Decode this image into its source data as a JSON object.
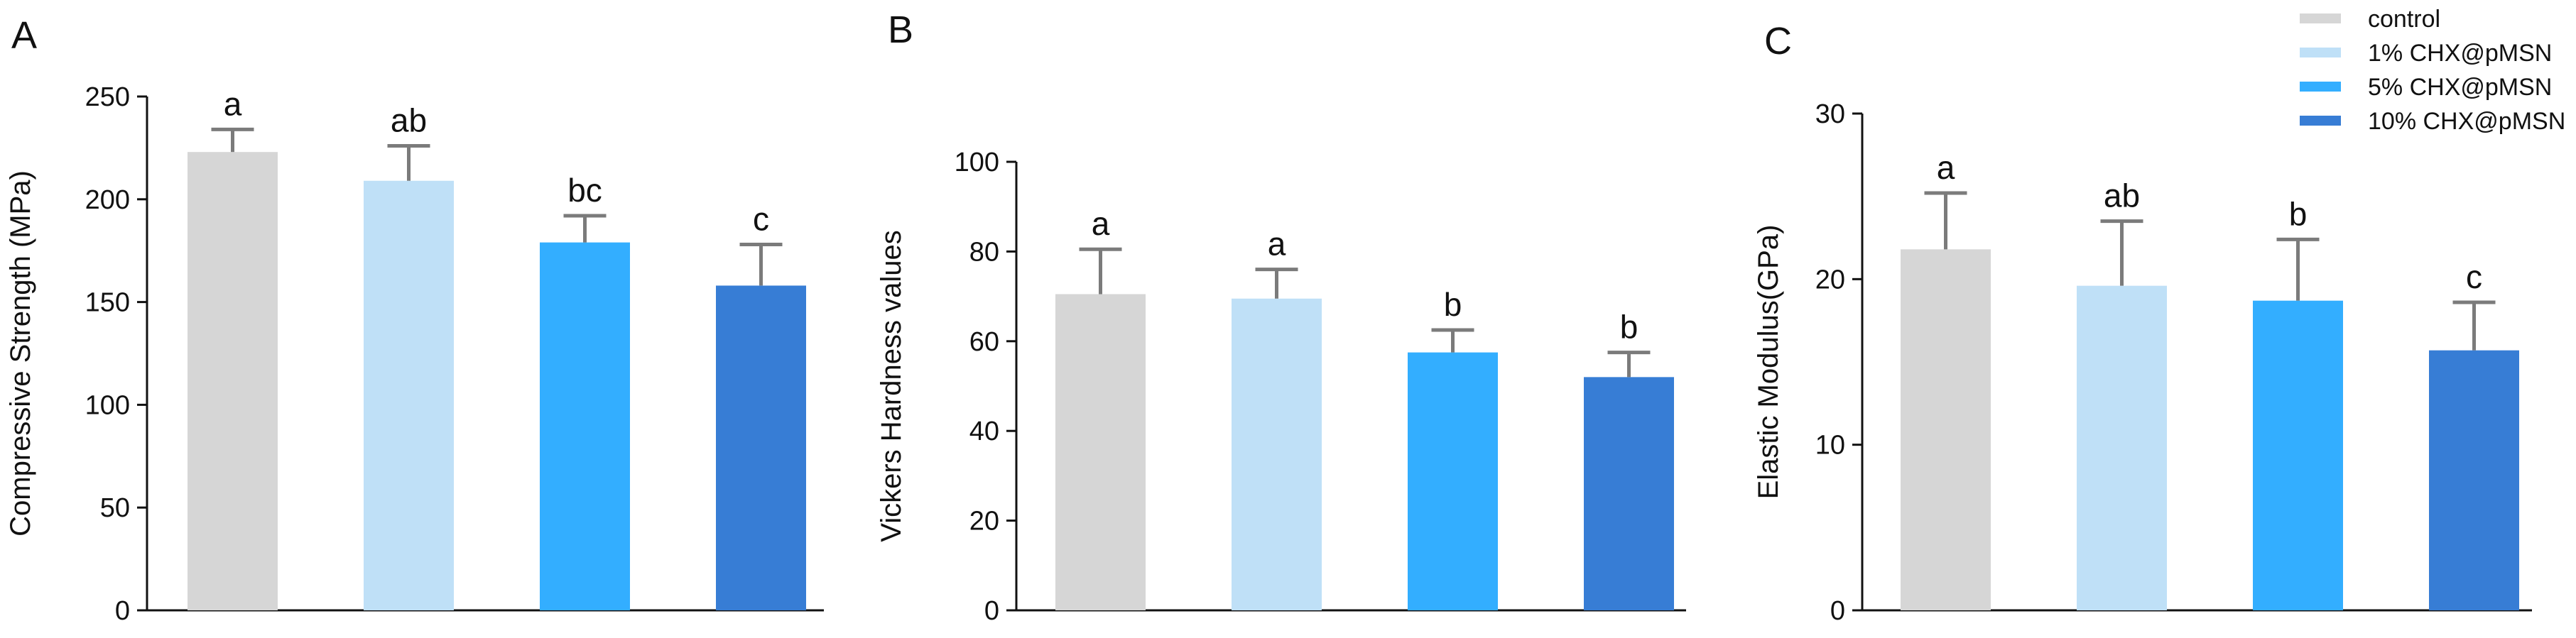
{
  "legend": {
    "placement": "top-right",
    "items": [
      {
        "label": "control",
        "color": "#d6d6d6"
      },
      {
        "label": "1% CHX@pMSN",
        "color": "#bfe0f7"
      },
      {
        "label": "5% CHX@pMSN",
        "color": "#33aeff"
      },
      {
        "label": "10% CHX@pMSN",
        "color": "#377dd5"
      }
    ]
  },
  "chart_data": [
    {
      "panel": "A",
      "type": "bar",
      "categories": [
        "control",
        "1% CHX@pMSN",
        "5% CHX@pMSN",
        "10% CHX@pMSN"
      ],
      "values": [
        223,
        209,
        179,
        158
      ],
      "errors": [
        11,
        17,
        13,
        20
      ],
      "significance": [
        "a",
        "ab",
        "bc",
        "c"
      ],
      "ylabel": "Compressive Strength (MPa)",
      "ylim": [
        0,
        250
      ],
      "yticks": [
        0,
        50,
        100,
        150,
        200,
        250
      ],
      "grid": false
    },
    {
      "panel": "B",
      "type": "bar",
      "categories": [
        "control",
        "1% CHX@pMSN",
        "5% CHX@pMSN",
        "10% CHX@pMSN"
      ],
      "values": [
        70.5,
        69.5,
        57.5,
        52
      ],
      "errors": [
        10,
        6.5,
        5,
        5.5
      ],
      "significance": [
        "a",
        "a",
        "b",
        "b"
      ],
      "ylabel": "Vickers Hardness values",
      "ylim": [
        0,
        100
      ],
      "yticks": [
        0,
        20,
        40,
        60,
        80,
        100
      ],
      "grid": false
    },
    {
      "panel": "C",
      "type": "bar",
      "categories": [
        "control",
        "1% CHX@pMSN",
        "5% CHX@pMSN",
        "10% CHX@pMSN"
      ],
      "values": [
        21.8,
        19.6,
        18.7,
        15.7
      ],
      "errors": [
        3.4,
        3.9,
        3.7,
        2.9
      ],
      "significance": [
        "a",
        "ab",
        "b",
        "c"
      ],
      "ylabel": "Elastic Modulus(GPa)",
      "ylim": [
        0,
        30
      ],
      "yticks": [
        0,
        10,
        20,
        30
      ],
      "grid": false
    }
  ]
}
